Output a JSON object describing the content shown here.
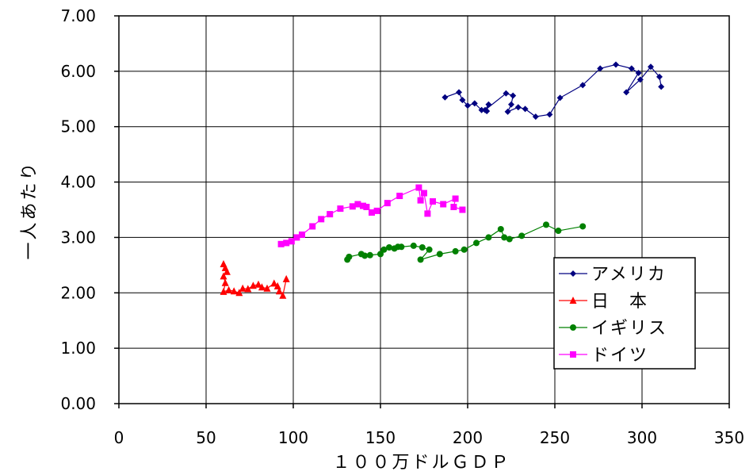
{
  "chart_data": {
    "type": "scatter",
    "title": "",
    "xlabel": "１００万ドルＧＤＰ",
    "ylabel": "一人あたり",
    "xlim": [
      0,
      350
    ],
    "ylim": [
      0,
      7
    ],
    "x_ticks": [
      "0",
      "50",
      "100",
      "150",
      "200",
      "250",
      "300",
      "350"
    ],
    "y_ticks": [
      "0.00",
      "1.00",
      "2.00",
      "3.00",
      "4.00",
      "5.00",
      "6.00",
      "7.00"
    ],
    "grid": true,
    "legend_position": "bottom-right",
    "series": [
      {
        "name": "アメリカ",
        "color": "#000080",
        "marker": "diamond",
        "points": [
          [
            187,
            5.53
          ],
          [
            195,
            5.62
          ],
          [
            197,
            5.48
          ],
          [
            200,
            5.38
          ],
          [
            204,
            5.42
          ],
          [
            208,
            5.3
          ],
          [
            211,
            5.28
          ],
          [
            212,
            5.4
          ],
          [
            210,
            5.3
          ],
          [
            222,
            5.6
          ],
          [
            226,
            5.56
          ],
          [
            225,
            5.4
          ],
          [
            223,
            5.27
          ],
          [
            229,
            5.35
          ],
          [
            233,
            5.32
          ],
          [
            239,
            5.18
          ],
          [
            247,
            5.22
          ],
          [
            253,
            5.52
          ],
          [
            266,
            5.75
          ],
          [
            276,
            6.05
          ],
          [
            285,
            6.12
          ],
          [
            294,
            6.05
          ],
          [
            298,
            5.97
          ],
          [
            291,
            5.62
          ],
          [
            299,
            5.85
          ],
          [
            305,
            6.08
          ],
          [
            310,
            5.9
          ],
          [
            311,
            5.72
          ]
        ]
      },
      {
        "name": "日　本",
        "color": "#ff0000",
        "marker": "triangle",
        "points": [
          [
            60,
            2.52
          ],
          [
            61,
            2.45
          ],
          [
            62,
            2.38
          ],
          [
            60,
            2.3
          ],
          [
            61,
            2.18
          ],
          [
            60,
            2.02
          ],
          [
            63,
            2.05
          ],
          [
            66,
            2.03
          ],
          [
            69,
            2.0
          ],
          [
            71,
            2.08
          ],
          [
            74,
            2.07
          ],
          [
            77,
            2.13
          ],
          [
            80,
            2.15
          ],
          [
            82,
            2.1
          ],
          [
            85,
            2.08
          ],
          [
            89,
            2.17
          ],
          [
            91,
            2.12
          ],
          [
            92,
            2.03
          ],
          [
            94,
            1.95
          ],
          [
            96,
            2.25
          ]
        ]
      },
      {
        "name": "イギリス",
        "color": "#008000",
        "marker": "circle",
        "points": [
          [
            131,
            2.6
          ],
          [
            132,
            2.65
          ],
          [
            139,
            2.7
          ],
          [
            141,
            2.67
          ],
          [
            144,
            2.68
          ],
          [
            150,
            2.7
          ],
          [
            152,
            2.78
          ],
          [
            155,
            2.82
          ],
          [
            158,
            2.8
          ],
          [
            160,
            2.83
          ],
          [
            162,
            2.83
          ],
          [
            169,
            2.85
          ],
          [
            174,
            2.82
          ],
          [
            178,
            2.78
          ],
          [
            173,
            2.6
          ],
          [
            184,
            2.7
          ],
          [
            193,
            2.75
          ],
          [
            198,
            2.78
          ],
          [
            205,
            2.9
          ],
          [
            212,
            3.0
          ],
          [
            219,
            3.15
          ],
          [
            221,
            3.0
          ],
          [
            224,
            2.97
          ],
          [
            231,
            3.03
          ],
          [
            245,
            3.23
          ],
          [
            252,
            3.12
          ],
          [
            266,
            3.2
          ]
        ]
      },
      {
        "name": "ドイツ",
        "color": "#ff00ff",
        "marker": "square",
        "points": [
          [
            93,
            2.88
          ],
          [
            96,
            2.9
          ],
          [
            99,
            2.93
          ],
          [
            102,
            3.0
          ],
          [
            105,
            3.05
          ],
          [
            111,
            3.2
          ],
          [
            116,
            3.33
          ],
          [
            121,
            3.42
          ],
          [
            127,
            3.52
          ],
          [
            134,
            3.56
          ],
          [
            137,
            3.6
          ],
          [
            140,
            3.57
          ],
          [
            142,
            3.55
          ],
          [
            145,
            3.45
          ],
          [
            148,
            3.48
          ],
          [
            154,
            3.62
          ],
          [
            161,
            3.75
          ],
          [
            172,
            3.9
          ],
          [
            173,
            3.67
          ],
          [
            175,
            3.8
          ],
          [
            177,
            3.43
          ],
          [
            180,
            3.65
          ],
          [
            186,
            3.6
          ],
          [
            193,
            3.7
          ],
          [
            192,
            3.55
          ],
          [
            197,
            3.5
          ]
        ]
      }
    ]
  }
}
